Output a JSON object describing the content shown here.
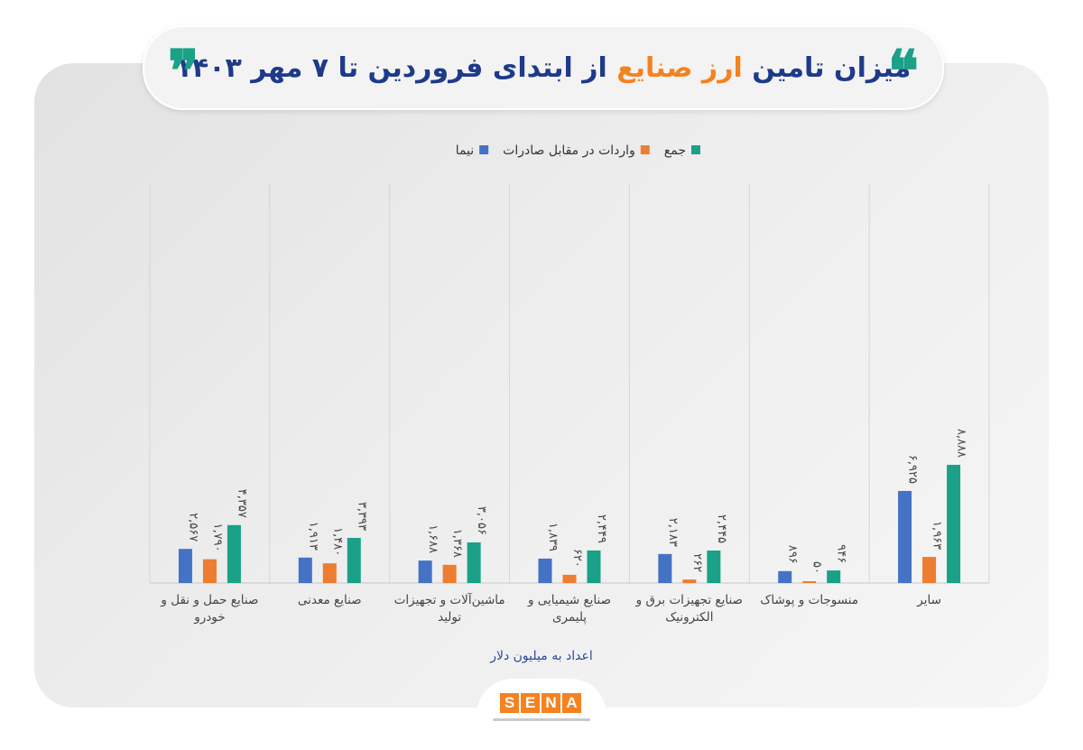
{
  "header": {
    "title_part1": "میزان تامین",
    "title_highlight": "ارز صنایع",
    "title_part2": "از ابتدای فروردین تا ۷ مهر ۱۴۰۳",
    "quote_open": "❞",
    "quote_close": "❝"
  },
  "colors": {
    "nima": "#4472c4",
    "imports": "#ed7d31",
    "total": "#1aa187",
    "title": "#1e3a8a",
    "accent": "#f58220"
  },
  "footer": {
    "logo_letters": [
      "S",
      "E",
      "N",
      "A"
    ]
  },
  "chart_data": {
    "type": "bar",
    "direction": "rtl",
    "categories": [
      [
        "سایر"
      ],
      [
        "منسوجات و پوشاک"
      ],
      [
        "صنایع تجهیزات برق و",
        "الکترونیک"
      ],
      [
        "صنایع شیمیایی و",
        "پلیمری"
      ],
      [
        "ماشین‌آلات و تجهیزات",
        "تولید"
      ],
      [
        "صنایع معدنی"
      ],
      [
        "صنایع حمل و نقل و",
        "خودرو"
      ]
    ],
    "series": [
      {
        "name": "نیما",
        "color": "#4472c4",
        "values": [
          6925,
          896,
          2183,
          1839,
          1688,
          1913,
          2567
        ],
        "labels": [
          "۶,۹۲۵",
          "۸۹۶",
          "۲,۱۸۳",
          "۱,۸۳۹",
          "۱,۶۸۸",
          "۱,۹۱۳",
          "۲,۵۶۷"
        ]
      },
      {
        "name": "واردات در مقابل صادرات",
        "color": "#ed7d31",
        "values": [
          1963,
          50,
          262,
          620,
          1368,
          1480,
          1790
        ],
        "labels": [
          "۱,۹۶۳",
          "۵۰",
          "۲۶۲",
          "۶۲۰",
          "۱,۳۶۸",
          "۱,۴۸۰",
          "۱,۷۹۰"
        ]
      },
      {
        "name": "جمع",
        "color": "#1aa187",
        "values": [
          8888,
          946,
          2445,
          2449,
          3056,
          3393,
          4357
        ],
        "labels": [
          "۸,۸۸۸",
          "۹۴۶",
          "۲,۴۴۵",
          "۲,۴۴۹",
          "۳,۰۵۶",
          "۳,۳۹۳",
          "۴,۳۵۷"
        ]
      }
    ],
    "legend_order": [
      "جمع",
      "واردات در مقابل صادرات",
      "نیما"
    ],
    "legend_position": "top",
    "ylim": [
      0,
      30000
    ],
    "grid": "vertical category separators",
    "note": "اعداد به میلیون دلار"
  }
}
